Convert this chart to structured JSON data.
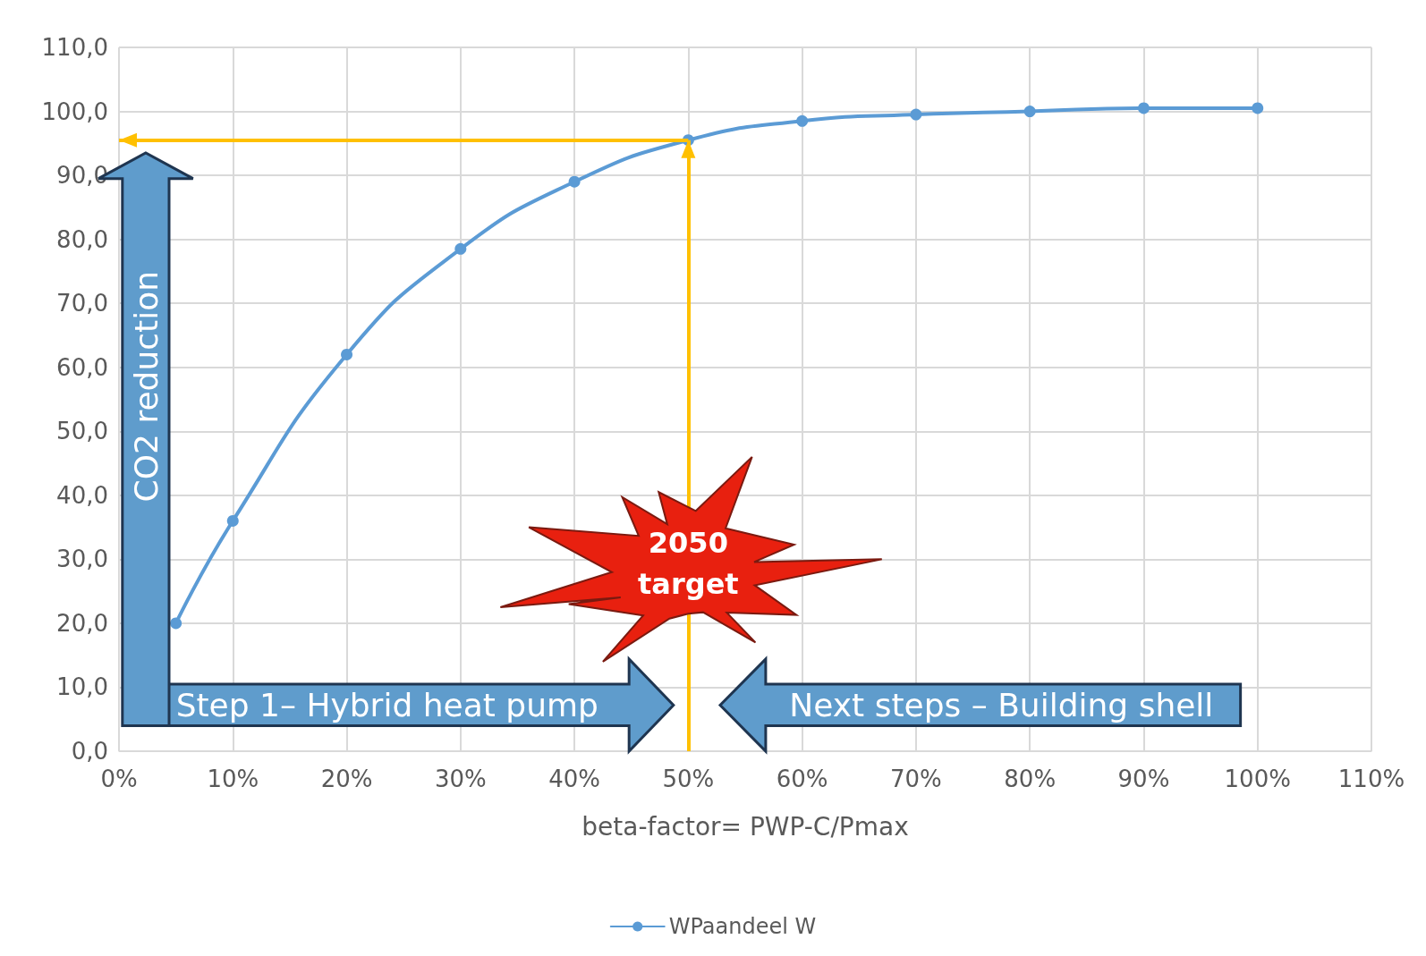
{
  "chart_data": {
    "type": "line",
    "xlabel": "beta-factor= PWP-C/Pmax",
    "x": [
      5,
      10,
      20,
      30,
      40,
      50,
      60,
      70,
      80,
      90,
      100
    ],
    "series": [
      {
        "name": "WPaandeel W",
        "color": "#5b9bd5",
        "values": [
          20,
          36,
          62,
          78.5,
          89,
          95.5,
          98.5,
          99.5,
          100,
          100.5,
          100.5
        ]
      }
    ],
    "xlim": [
      0,
      110
    ],
    "xticks": [
      {
        "value": 0,
        "label": "0%"
      },
      {
        "value": 10,
        "label": "10%"
      },
      {
        "value": 20,
        "label": "20%"
      },
      {
        "value": 30,
        "label": "30%"
      },
      {
        "value": 40,
        "label": "40%"
      },
      {
        "value": 50,
        "label": "50%"
      },
      {
        "value": 60,
        "label": "60%"
      },
      {
        "value": 70,
        "label": "70%"
      },
      {
        "value": 80,
        "label": "80%"
      },
      {
        "value": 90,
        "label": "90%"
      },
      {
        "value": 100,
        "label": "100%"
      },
      {
        "value": 110,
        "label": "110%"
      }
    ],
    "ylim": [
      0,
      110
    ],
    "yticks": [
      {
        "value": 0,
        "label": "0,0"
      },
      {
        "value": 10,
        "label": "10,0"
      },
      {
        "value": 20,
        "label": "20,0"
      },
      {
        "value": 30,
        "label": "30,0"
      },
      {
        "value": 40,
        "label": "40,0"
      },
      {
        "value": 50,
        "label": "50,0"
      },
      {
        "value": 60,
        "label": "60,0"
      },
      {
        "value": 70,
        "label": "70,0"
      },
      {
        "value": 80,
        "label": "80,0"
      },
      {
        "value": 90,
        "label": "90,0"
      },
      {
        "value": 100,
        "label": "100,0"
      },
      {
        "value": 110,
        "label": "110,0"
      }
    ],
    "ref_lines": [
      {
        "axis": "y",
        "value": 95.5,
        "color": "#ffc000"
      },
      {
        "axis": "x",
        "value": 50,
        "color": "#ffc000"
      }
    ],
    "annotations": [
      "CO2 reduction",
      "Step 1– Hybrid heat pump",
      "Next steps – Building shell",
      "2050 target"
    ],
    "grid": true,
    "legend": "bottom",
    "marker": "circle",
    "line_style": "solid"
  }
}
